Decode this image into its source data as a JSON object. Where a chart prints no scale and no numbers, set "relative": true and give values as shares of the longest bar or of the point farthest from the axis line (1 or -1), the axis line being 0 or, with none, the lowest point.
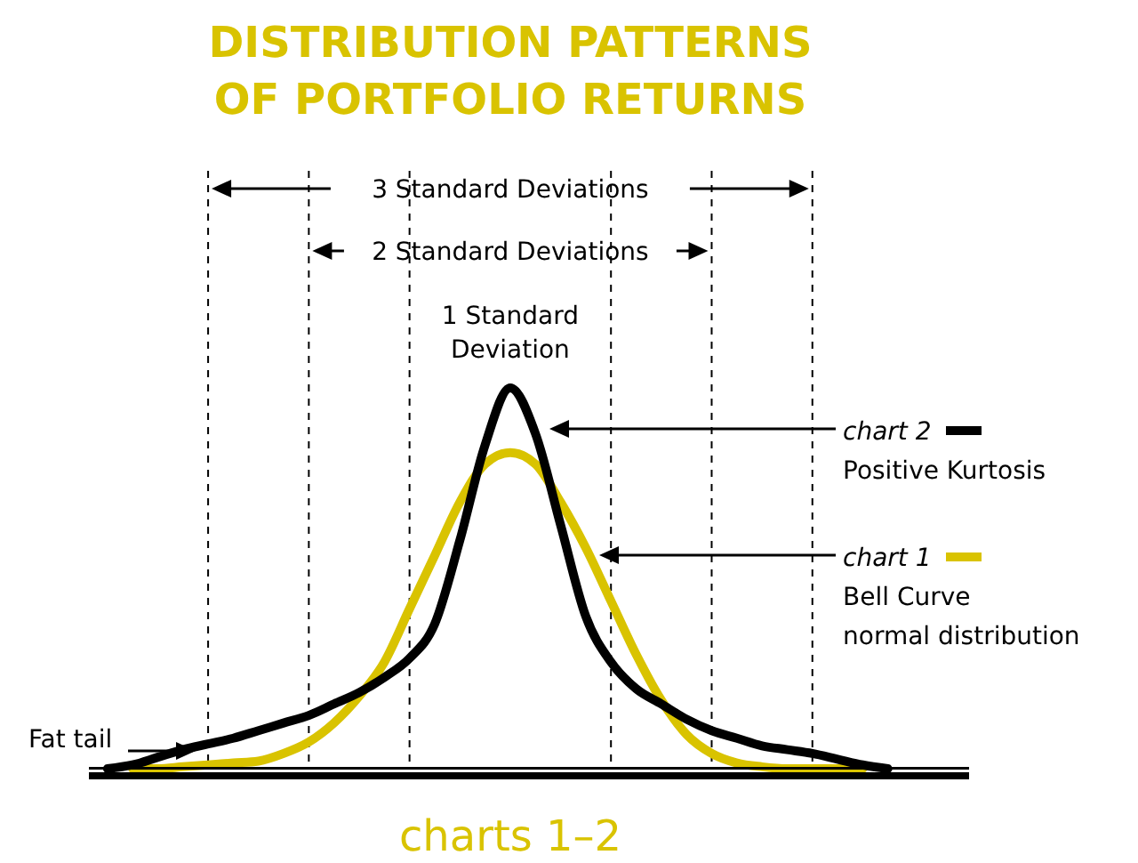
{
  "chart_data": {
    "type": "line",
    "relative": true,
    "title": "DISTRIBUTION PATTERNS OF PORTFOLIO RETURNS",
    "categories": [
      null,
      null,
      null,
      null,
      null,
      null,
      null,
      null,
      null,
      null,
      null,
      null,
      null,
      null,
      null,
      null,
      null,
      null,
      null,
      null,
      null,
      null,
      null,
      null,
      null,
      null,
      null,
      null,
      null,
      null,
      null,
      null
    ],
    "series": [
      {
        "name": "chart 2",
        "color": "#000000",
        "values": [
          0,
          0.01,
          0.03,
          0.05,
          0.065,
          0.08,
          0.1,
          0.12,
          0.14,
          0.17,
          0.2,
          0.24,
          0.29,
          0.38,
          0.6,
          0.85,
          1,
          0.88,
          0.64,
          0.4,
          0.28,
          0.21,
          0.17,
          0.13,
          0.1,
          0.08,
          0.06,
          0.05,
          0.04,
          0.025,
          0.01,
          0
        ]
      },
      {
        "name": "chart 1",
        "color": "#d9c300",
        "values": [
          null,
          0,
          0,
          0.005,
          0.01,
          0.015,
          0.02,
          0.04,
          0.07,
          0.12,
          0.19,
          0.28,
          0.42,
          0.56,
          0.7,
          0.8,
          0.83,
          0.8,
          0.7,
          0.58,
          0.44,
          0.3,
          0.18,
          0.09,
          0.04,
          0.015,
          0.005,
          0,
          0,
          0,
          0,
          null
        ]
      }
    ],
    "annotations": [
      "3 Standard Deviations",
      "2 Standard Deviations",
      "1 Standard Deviation",
      "Positive Kurtosis",
      "Bell Curve",
      "normal distribution",
      "Fat tail",
      "charts 1–2"
    ],
    "line_style": "solid",
    "grid": "x",
    "legend": "right"
  }
}
